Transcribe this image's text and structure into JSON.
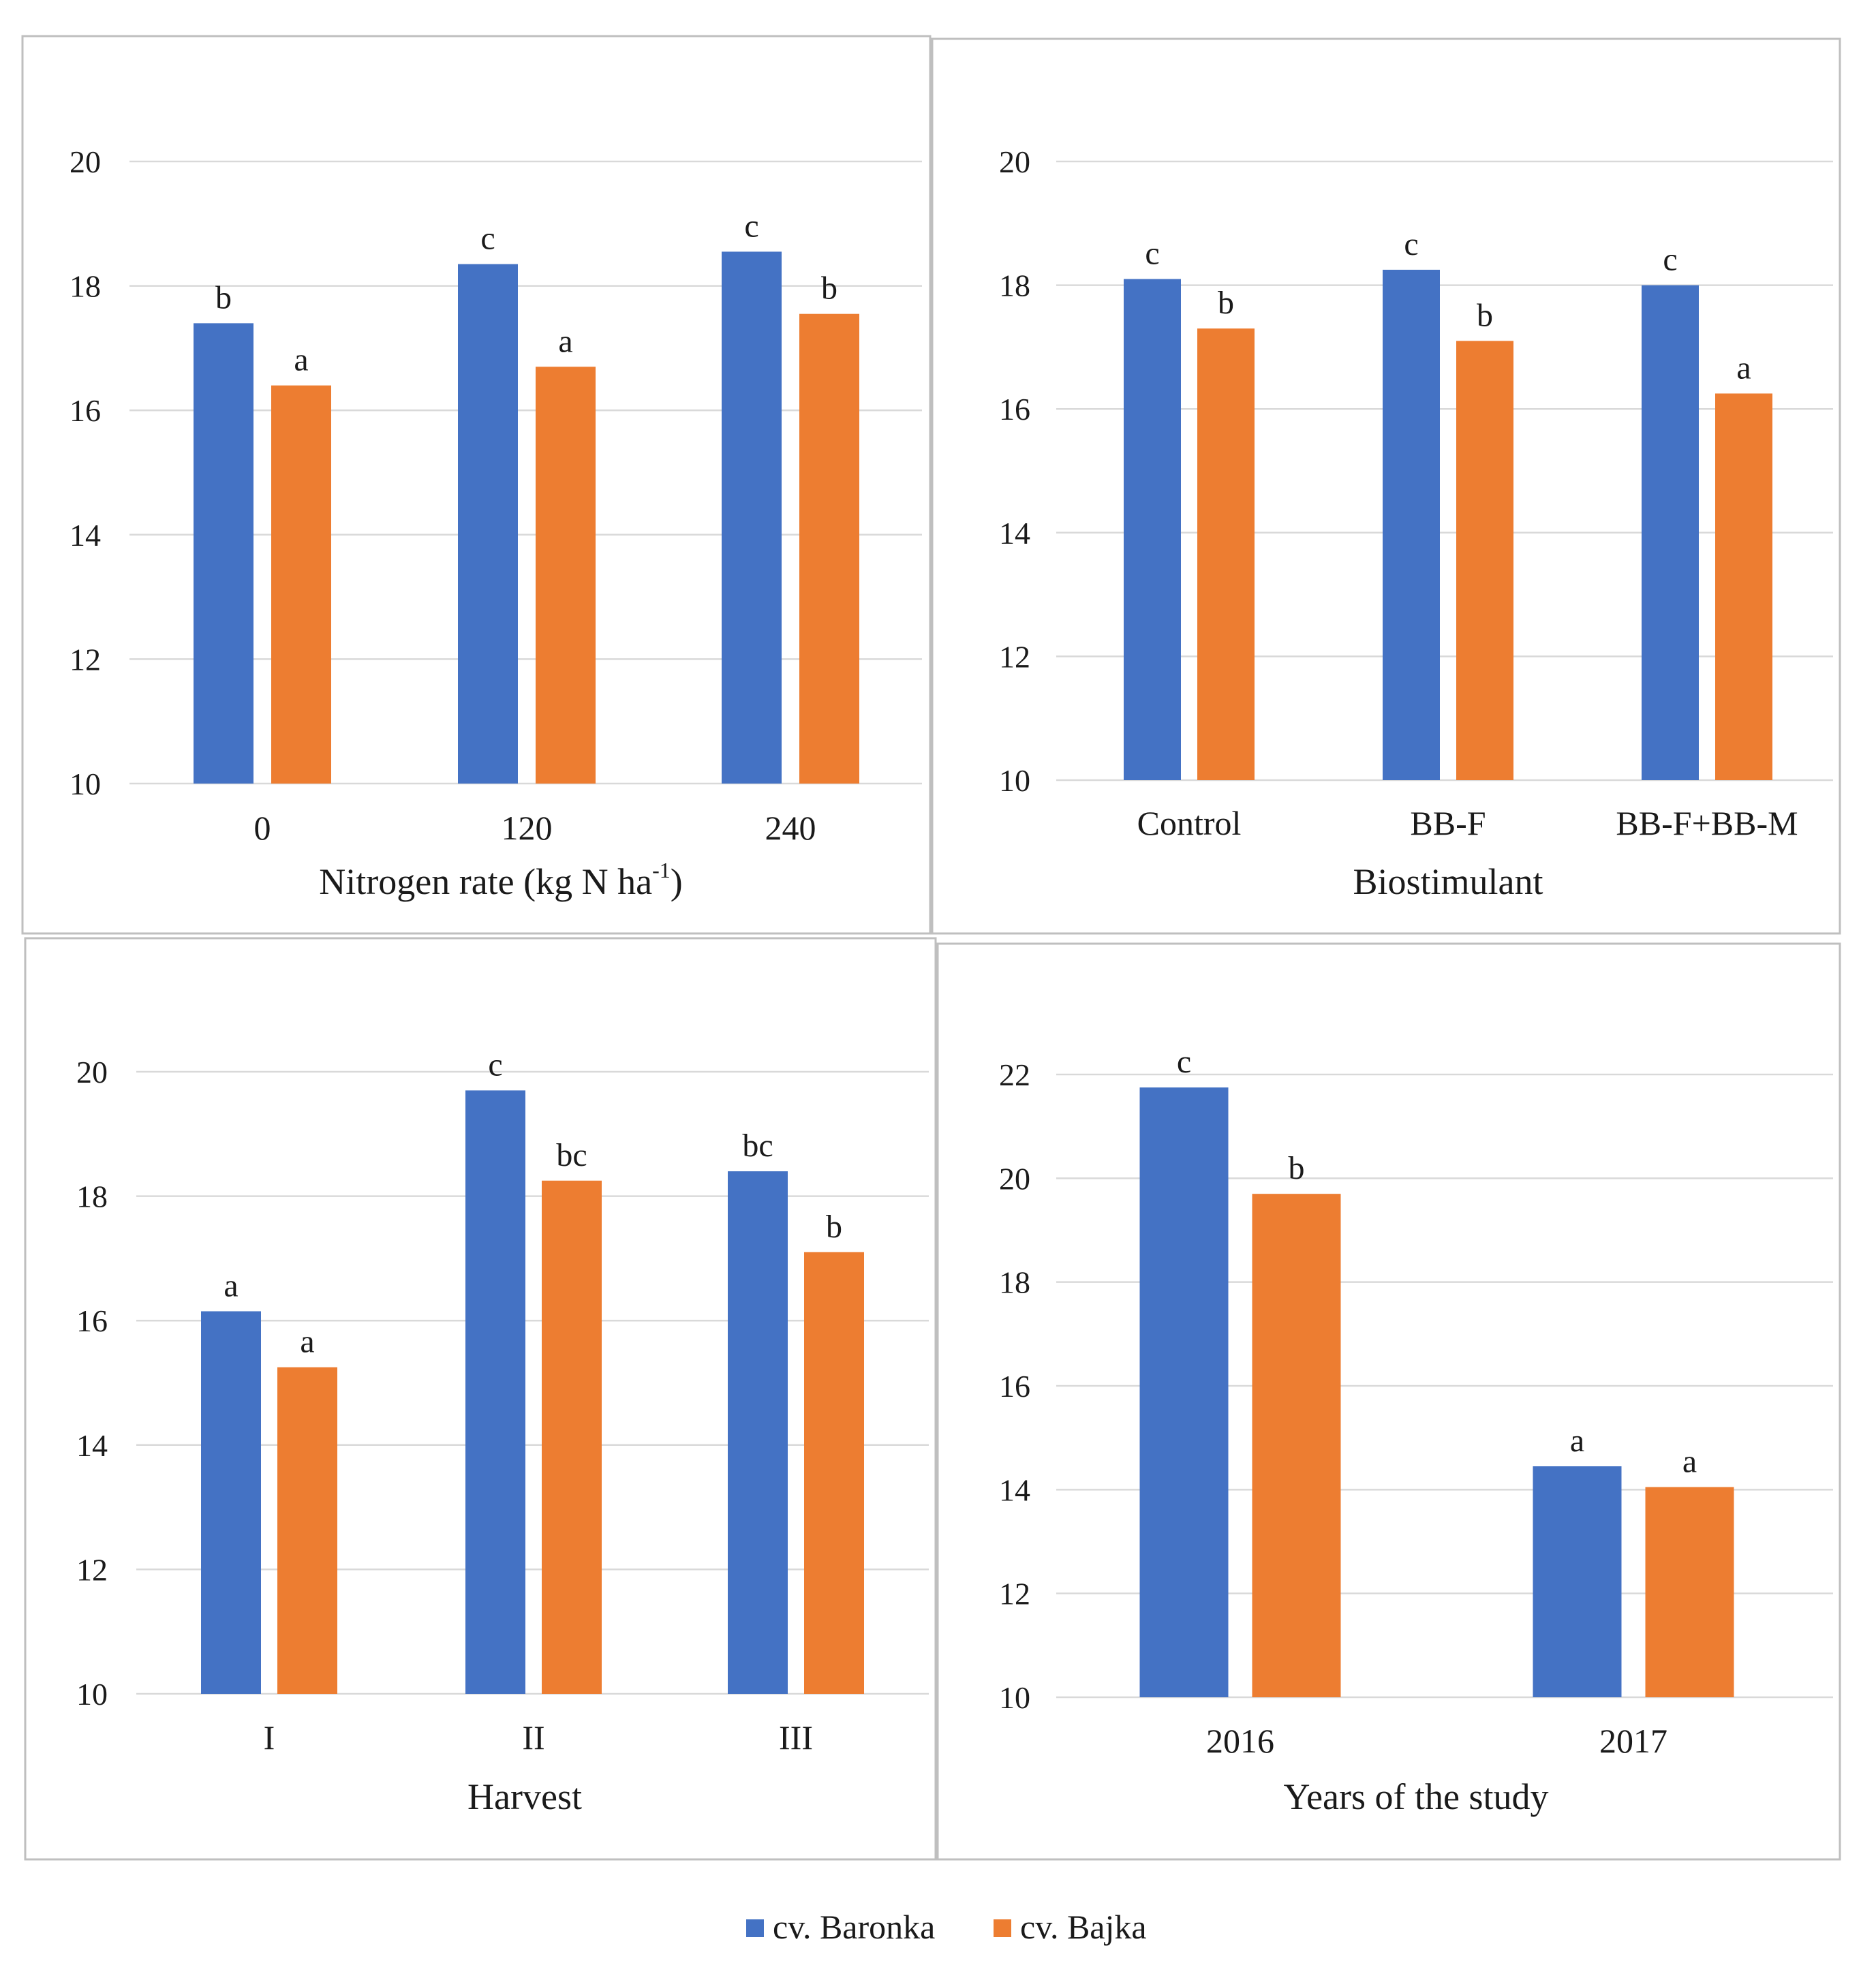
{
  "colors": {
    "series_0": "#4472C4",
    "series_1": "#ED7D31"
  },
  "legend": {
    "items": [
      {
        "label": "cv. Baronka",
        "color": "#4472C4"
      },
      {
        "label": "cv. Bajka",
        "color": "#ED7D31"
      }
    ],
    "position": "bottom-center"
  },
  "chart_data": [
    {
      "type": "bar",
      "title": "",
      "xlabel": "Nitrogen rate (kg N ha-1)",
      "xlabel_main": "Nitrogen rate (kg N ha",
      "xlabel_sup": "-1",
      "xlabel_end": ")",
      "ylabel": "",
      "categories": [
        "0",
        "120",
        "240"
      ],
      "ylim": [
        10,
        20
      ],
      "yticks": [
        "10",
        "12",
        "14",
        "16",
        "18",
        "20"
      ],
      "grid": true,
      "series": [
        {
          "name": "cv. Baronka",
          "values": [
            17.4,
            18.35,
            18.55
          ],
          "letters": [
            "b",
            "c",
            "c"
          ]
        },
        {
          "name": "cv. Bajka",
          "values": [
            16.4,
            16.7,
            17.55
          ],
          "letters": [
            "a",
            "a",
            "b"
          ]
        }
      ]
    },
    {
      "type": "bar",
      "title": "",
      "xlabel": "Biostimulant",
      "xlabel_main": "Biostimulant",
      "xlabel_sup": "",
      "xlabel_end": "",
      "ylabel": "",
      "categories": [
        "Control",
        "BB-F",
        "BB-F+BB-M"
      ],
      "ylim": [
        10,
        20
      ],
      "yticks": [
        "10",
        "12",
        "14",
        "16",
        "18",
        "20"
      ],
      "grid": true,
      "series": [
        {
          "name": "cv. Baronka",
          "values": [
            18.1,
            18.25,
            18.0
          ],
          "letters": [
            "c",
            "c",
            "c"
          ]
        },
        {
          "name": "cv. Bajka",
          "values": [
            17.3,
            17.1,
            16.25
          ],
          "letters": [
            "b",
            "b",
            "a"
          ]
        }
      ]
    },
    {
      "type": "bar",
      "title": "",
      "xlabel": "Harvest",
      "xlabel_main": "Harvest",
      "xlabel_sup": "",
      "xlabel_end": "",
      "ylabel": "",
      "categories": [
        "I",
        "II",
        "III"
      ],
      "ylim": [
        10,
        20
      ],
      "yticks": [
        "10",
        "12",
        "14",
        "16",
        "18",
        "20"
      ],
      "grid": true,
      "series": [
        {
          "name": "cv. Baronka",
          "values": [
            16.15,
            19.7,
            18.4
          ],
          "letters": [
            "a",
            "c",
            "bc"
          ]
        },
        {
          "name": "cv. Bajka",
          "values": [
            15.25,
            18.25,
            17.1
          ],
          "letters": [
            "a",
            "bc",
            "b"
          ]
        }
      ]
    },
    {
      "type": "bar",
      "title": "",
      "xlabel": "Years of the study",
      "xlabel_main": "Years of the study",
      "xlabel_sup": "",
      "xlabel_end": "",
      "ylabel": "",
      "categories": [
        "2016",
        "2017"
      ],
      "ylim": [
        10,
        22
      ],
      "yticks": [
        "10",
        "12",
        "14",
        "16",
        "18",
        "20",
        "22"
      ],
      "grid": true,
      "series": [
        {
          "name": "cv. Baronka",
          "values": [
            21.75,
            14.45
          ],
          "letters": [
            "c",
            "a"
          ]
        },
        {
          "name": "cv. Bajka",
          "values": [
            19.7,
            14.05
          ],
          "letters": [
            "b",
            "a"
          ]
        }
      ]
    }
  ]
}
